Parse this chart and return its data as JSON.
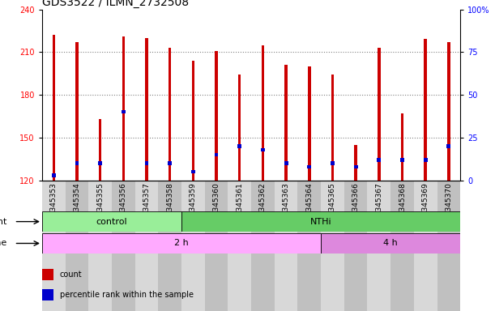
{
  "title": "GDS3522 / ILMN_2732508",
  "samples": [
    "GSM345353",
    "GSM345354",
    "GSM345355",
    "GSM345356",
    "GSM345357",
    "GSM345358",
    "GSM345359",
    "GSM345360",
    "GSM345361",
    "GSM345362",
    "GSM345363",
    "GSM345364",
    "GSM345365",
    "GSM345366",
    "GSM345367",
    "GSM345368",
    "GSM345369",
    "GSM345370"
  ],
  "counts": [
    222,
    217,
    163,
    221,
    220,
    213,
    204,
    211,
    194,
    215,
    201,
    200,
    194,
    145,
    213,
    167,
    219,
    217
  ],
  "percentile_ranks": [
    3,
    10,
    10,
    40,
    10,
    10,
    5,
    15,
    20,
    18,
    10,
    8,
    10,
    8,
    12,
    12,
    12,
    20
  ],
  "y_min": 120,
  "y_max": 240,
  "y_ticks": [
    120,
    150,
    180,
    210,
    240
  ],
  "right_y_ticks": [
    0,
    25,
    50,
    75,
    100
  ],
  "bar_color": "#cc0000",
  "blue_color": "#0000cc",
  "agent_groups": [
    {
      "label": "control",
      "start": 0,
      "end": 6,
      "color": "#99ee99"
    },
    {
      "label": "NTHi",
      "start": 6,
      "end": 18,
      "color": "#66cc66"
    }
  ],
  "time_groups": [
    {
      "label": "2 h",
      "start": 0,
      "end": 12,
      "color": "#ffaaff"
    },
    {
      "label": "4 h",
      "start": 12,
      "end": 18,
      "color": "#dd88dd"
    }
  ],
  "legend_items": [
    {
      "color": "#cc0000",
      "label": "count"
    },
    {
      "color": "#0000cc",
      "label": "percentile rank within the sample"
    }
  ],
  "title_fontsize": 10,
  "tick_fontsize": 7,
  "label_fontsize": 8,
  "bar_width": 0.12
}
